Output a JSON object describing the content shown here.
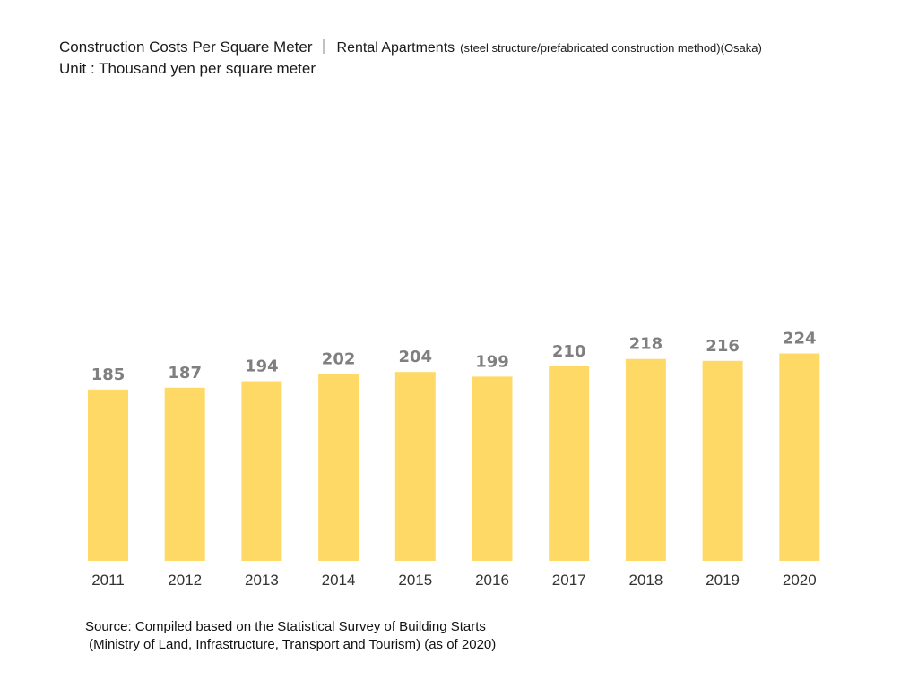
{
  "colors": {
    "bar": "#FFD966",
    "value_label": "#7f7f7f",
    "tick_label": "#333333"
  },
  "chart_data": {
    "type": "bar",
    "title": "Construction Costs Per Square Meter",
    "separator": "｜",
    "subtitle": "Rental Apartments",
    "subtitle_note": "(steel structure/prefabricated construction method)(Osaka)",
    "unit": "Unit : Thousand yen per square meter",
    "categories": [
      "2011",
      "2012",
      "2013",
      "2014",
      "2015",
      "2016",
      "2017",
      "2018",
      "2019",
      "2020"
    ],
    "values": [
      185,
      187,
      194,
      202,
      204,
      199,
      210,
      218,
      216,
      224
    ],
    "xlabel": "",
    "ylabel": "",
    "ylim": [
      0,
      480
    ],
    "grid": false,
    "legend": "none"
  },
  "source": {
    "line1": "Source: Compiled based on the Statistical Survey of Building Starts",
    "line2": " (Ministry of Land, Infrastructure, Transport and Tourism) (as of 2020)"
  }
}
